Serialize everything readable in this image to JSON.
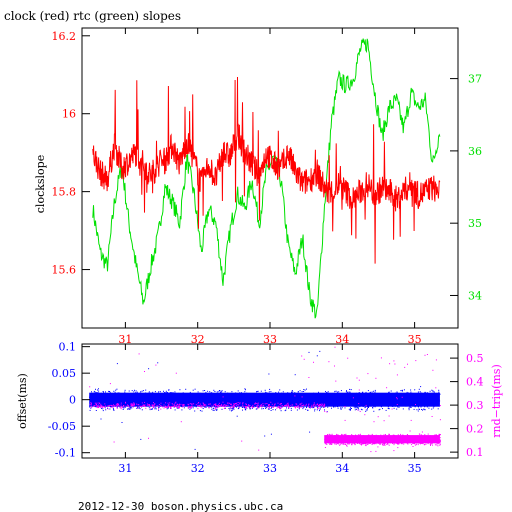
{
  "title": "clock (red) rtc (green) slopes",
  "footer": "2012-12-30  boson.physics.ubc.ca",
  "colors": {
    "red": "#ff0000",
    "green": "#00e000",
    "blue": "#0000ff",
    "magenta": "#ff00ff",
    "axis": "#000000"
  },
  "chart_data": [
    {
      "type": "line",
      "name": "top",
      "title": "clock (red) rtc (green) slopes",
      "ylabel": "clockslope",
      "xlim": [
        30.4,
        35.6
      ],
      "ylim_left": [
        15.45,
        16.22
      ],
      "ylim_right": [
        33.55,
        37.7
      ],
      "x_ticks": [
        31,
        32,
        33,
        34,
        35
      ],
      "y_ticks_left": [
        15.6,
        15.8,
        16,
        16.2
      ],
      "y_ticks_right": [
        34,
        35,
        36,
        37
      ],
      "series": [
        {
          "axis": "left",
          "points": [
            [
              30.55,
              15.9
            ],
            [
              30.65,
              15.85
            ],
            [
              30.75,
              15.83
            ],
            [
              30.85,
              15.92
            ],
            [
              30.95,
              15.86
            ],
            [
              31.05,
              15.88
            ],
            [
              31.15,
              15.9
            ],
            [
              31.25,
              15.87
            ],
            [
              31.35,
              15.84
            ],
            [
              31.45,
              15.87
            ],
            [
              31.55,
              15.88
            ],
            [
              31.65,
              15.92
            ],
            [
              31.75,
              15.87
            ],
            [
              31.85,
              15.93
            ],
            [
              31.95,
              15.88
            ],
            [
              32.05,
              15.82
            ],
            [
              32.15,
              15.87
            ],
            [
              32.25,
              15.83
            ],
            [
              32.35,
              15.9
            ],
            [
              32.45,
              15.89
            ],
            [
              32.55,
              15.95
            ],
            [
              32.65,
              15.9
            ],
            [
              32.75,
              15.87
            ],
            [
              32.85,
              15.84
            ],
            [
              32.95,
              15.9
            ],
            [
              33.05,
              15.87
            ],
            [
              33.15,
              15.86
            ],
            [
              33.25,
              15.9
            ],
            [
              33.35,
              15.85
            ],
            [
              33.45,
              15.82
            ],
            [
              33.55,
              15.83
            ],
            [
              33.65,
              15.85
            ],
            [
              33.75,
              15.81
            ],
            [
              33.85,
              15.79
            ],
            [
              33.95,
              15.82
            ],
            [
              34.05,
              15.8
            ],
            [
              34.15,
              15.78
            ],
            [
              34.25,
              15.8
            ],
            [
              34.35,
              15.82
            ],
            [
              34.45,
              15.79
            ],
            [
              34.55,
              15.81
            ],
            [
              34.65,
              15.8
            ],
            [
              34.75,
              15.78
            ],
            [
              34.85,
              15.8
            ],
            [
              34.95,
              15.82
            ],
            [
              35.05,
              15.79
            ],
            [
              35.15,
              15.8
            ],
            [
              35.25,
              15.81
            ],
            [
              35.35,
              15.8
            ]
          ]
        },
        {
          "axis": "right",
          "points": [
            [
              30.55,
              35.2
            ],
            [
              30.65,
              34.6
            ],
            [
              30.75,
              34.4
            ],
            [
              30.85,
              35.3
            ],
            [
              30.95,
              35.8
            ],
            [
              31.05,
              35.0
            ],
            [
              31.15,
              34.4
            ],
            [
              31.25,
              33.9
            ],
            [
              31.35,
              34.4
            ],
            [
              31.45,
              34.8
            ],
            [
              31.55,
              35.5
            ],
            [
              31.65,
              35.3
            ],
            [
              31.75,
              35.0
            ],
            [
              31.85,
              35.9
            ],
            [
              31.95,
              35.4
            ],
            [
              32.05,
              34.6
            ],
            [
              32.15,
              35.2
            ],
            [
              32.25,
              35.0
            ],
            [
              32.35,
              34.2
            ],
            [
              32.45,
              34.9
            ],
            [
              32.55,
              35.4
            ],
            [
              32.65,
              35.2
            ],
            [
              32.75,
              35.6
            ],
            [
              32.85,
              35.0
            ],
            [
              32.95,
              35.7
            ],
            [
              33.05,
              35.9
            ],
            [
              33.15,
              35.6
            ],
            [
              33.25,
              34.7
            ],
            [
              33.35,
              34.3
            ],
            [
              33.45,
              34.8
            ],
            [
              33.55,
              34.0
            ],
            [
              33.65,
              33.7
            ],
            [
              33.75,
              35.2
            ],
            [
              33.85,
              36.4
            ],
            [
              33.95,
              37.0
            ],
            [
              34.05,
              36.9
            ],
            [
              34.15,
              37.0
            ],
            [
              34.25,
              37.4
            ],
            [
              34.35,
              37.5
            ],
            [
              34.45,
              36.8
            ],
            [
              34.55,
              36.2
            ],
            [
              34.65,
              36.6
            ],
            [
              34.75,
              36.7
            ],
            [
              34.85,
              36.3
            ],
            [
              34.95,
              36.8
            ],
            [
              35.05,
              36.6
            ],
            [
              35.15,
              36.7
            ],
            [
              35.25,
              35.8
            ],
            [
              35.35,
              36.3
            ]
          ]
        }
      ]
    },
    {
      "type": "scatter",
      "name": "bottom",
      "ylabel_left": "offset(ms)",
      "ylabel_right": "rnd−trip(ms)",
      "xlim": [
        30.4,
        35.6
      ],
      "ylim_left": [
        -0.11,
        0.105
      ],
      "ylim_right": [
        0.075,
        0.56
      ],
      "x_ticks": [
        31,
        32,
        33,
        34,
        35
      ],
      "y_ticks_left": [
        0.1,
        0.05,
        0,
        -0.05,
        -0.1
      ],
      "y_ticks_right": [
        0.5,
        0.4,
        0.3,
        0.2,
        0.1
      ],
      "series": [
        {
          "axis": "left",
          "x_range": [
            30.5,
            35.35
          ],
          "y_center": 0.0,
          "y_halfwidth": 0.022,
          "count": 2600
        },
        {
          "axis": "right",
          "x_range": [
            30.5,
            33.75
          ],
          "y_center": 0.3,
          "y_halfwidth": 0.015,
          "count": 500
        },
        {
          "axis": "right",
          "x_range": [
            33.75,
            35.35
          ],
          "y_center": 0.155,
          "y_halfwidth": 0.025,
          "count": 1500
        }
      ]
    }
  ]
}
